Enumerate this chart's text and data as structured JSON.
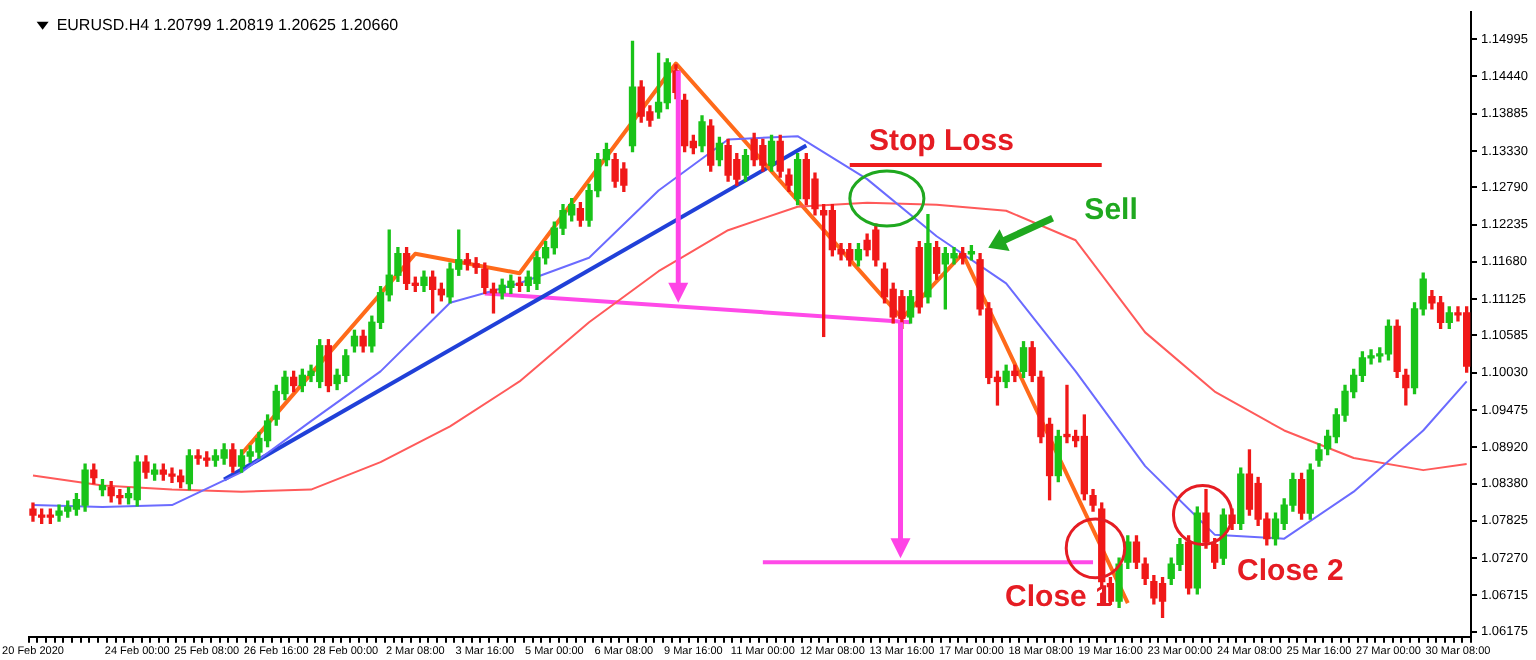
{
  "chart_data": {
    "type": "candlestick",
    "title": "EURUSD.H4 1.20799 1.20819 1.20625 1.20660",
    "categories": [
      "20 Feb 2020",
      null,
      null,
      null,
      null,
      null,
      null,
      null,
      null,
      null,
      null,
      null,
      "24 Feb 00:00",
      null,
      null,
      null,
      null,
      null,
      null,
      null,
      "25 Feb 08:00",
      null,
      null,
      null,
      null,
      null,
      null,
      null,
      "26 Feb 16:00",
      null,
      null,
      null,
      null,
      null,
      null,
      null,
      "28 Feb 00:00",
      null,
      null,
      null,
      null,
      null,
      null,
      null,
      "2 Mar 08:00",
      null,
      null,
      null,
      null,
      null,
      null,
      null,
      "3 Mar 16:00",
      null,
      null,
      null,
      null,
      null,
      null,
      null,
      "5 Mar 00:00",
      null,
      null,
      null,
      null,
      null,
      null,
      null,
      "6 Mar 08:00",
      null,
      null,
      null,
      null,
      null,
      null,
      null,
      "9 Mar 16:00",
      null,
      null,
      null,
      null,
      null,
      null,
      null,
      "11 Mar 00:00",
      null,
      null,
      null,
      null,
      null,
      null,
      null,
      "12 Mar 08:00",
      null,
      null,
      null,
      null,
      null,
      null,
      null,
      "13 Mar 16:00",
      null,
      null,
      null,
      null,
      null,
      null,
      null,
      "17 Mar 00:00",
      null,
      null,
      null,
      null,
      null,
      null,
      null,
      "18 Mar 08:00",
      null,
      null,
      null,
      null,
      null,
      null,
      null,
      "19 Mar 16:00",
      null,
      null,
      null,
      null,
      null,
      null,
      null,
      "23 Mar 00:00",
      null,
      null,
      null,
      null,
      null,
      null,
      null,
      "24 Mar 08:00",
      null,
      null,
      null,
      null,
      null,
      null,
      null,
      "25 Mar 16:00",
      null,
      null,
      null,
      null,
      null,
      null,
      null,
      "27 Mar 00:00",
      null,
      null,
      null,
      null,
      null,
      null,
      null,
      "30 Mar 08:00",
      null
    ],
    "ohlc": [
      [
        1.08,
        1.0809,
        1.0782,
        1.0791
      ],
      [
        1.0791,
        1.08,
        1.0779,
        1.0788
      ],
      [
        1.0791,
        1.08,
        1.0779,
        1.0788
      ],
      [
        1.0791,
        1.0806,
        1.0782,
        1.0797
      ],
      [
        1.0797,
        1.0812,
        1.0788,
        1.0803
      ],
      [
        1.08,
        1.0823,
        1.0791,
        1.0814
      ],
      [
        1.0806,
        1.0867,
        1.0797,
        1.0858
      ],
      [
        1.0858,
        1.0867,
        1.0838,
        1.0847
      ],
      [
        1.0829,
        1.0844,
        1.082,
        1.0835
      ],
      [
        1.0832,
        1.0841,
        1.0811,
        1.082
      ],
      [
        1.082,
        1.0829,
        1.0808,
        1.0817
      ],
      [
        1.0817,
        1.0832,
        1.0808,
        1.0823
      ],
      [
        1.0814,
        1.0879,
        1.0805,
        1.087
      ],
      [
        1.087,
        1.0879,
        1.0846,
        1.0855
      ],
      [
        1.0852,
        1.0867,
        1.0843,
        1.0858
      ],
      [
        1.0858,
        1.0867,
        1.0843,
        1.0852
      ],
      [
        1.0852,
        1.0861,
        1.084,
        1.0849
      ],
      [
        1.0849,
        1.0858,
        1.0832,
        1.0841
      ],
      [
        1.0838,
        1.0888,
        1.0829,
        1.0879
      ],
      [
        1.0879,
        1.0888,
        1.0867,
        1.0876
      ],
      [
        1.0876,
        1.0885,
        1.0864,
        1.0873
      ],
      [
        1.0873,
        1.0888,
        1.0864,
        1.0879
      ],
      [
        1.0876,
        1.0897,
        1.0867,
        1.0888
      ],
      [
        1.0888,
        1.0897,
        1.0855,
        1.0864
      ],
      [
        1.0864,
        1.0888,
        1.0855,
        1.0879
      ],
      [
        1.0879,
        1.0894,
        1.087,
        1.0885
      ],
      [
        1.0885,
        1.0914,
        1.0876,
        1.0905
      ],
      [
        1.0902,
        1.094,
        1.0893,
        1.0931
      ],
      [
        1.0934,
        1.0984,
        1.0925,
        1.0975
      ],
      [
        1.0972,
        1.1005,
        1.0963,
        1.0996
      ],
      [
        1.0996,
        1.1005,
        1.0975,
        1.0984
      ],
      [
        1.0984,
        1.1008,
        1.0975,
        1.0999
      ],
      [
        1.0999,
        1.1014,
        1.099,
        1.1005
      ],
      [
        1.099,
        1.1052,
        1.0981,
        1.1043
      ],
      [
        1.1043,
        1.1052,
        1.0975,
        1.0984
      ],
      [
        1.0987,
        1.1008,
        1.0978,
        1.0999
      ],
      [
        1.0999,
        1.1037,
        1.099,
        1.1028
      ],
      [
        1.1043,
        1.1066,
        1.1034,
        1.1057
      ],
      [
        1.1057,
        1.1066,
        1.1034,
        1.1043
      ],
      [
        1.1043,
        1.1087,
        1.1034,
        1.1078
      ],
      [
        1.1078,
        1.1131,
        1.1069,
        1.1122
      ],
      [
        1.1119,
        1.1215,
        1.111,
        1.1148
      ],
      [
        1.1148,
        1.1189,
        1.1139,
        1.118
      ],
      [
        1.118,
        1.1189,
        1.1127,
        1.1136
      ],
      [
        1.1136,
        1.1145,
        1.1124,
        1.1133
      ],
      [
        1.1133,
        1.1154,
        1.1124,
        1.1145
      ],
      [
        1.1145,
        1.1154,
        1.1092,
        1.1127
      ],
      [
        1.1127,
        1.1136,
        1.111,
        1.1119
      ],
      [
        1.1116,
        1.1166,
        1.1107,
        1.1157
      ],
      [
        1.1157,
        1.1215,
        1.1148,
        1.1171
      ],
      [
        1.1171,
        1.118,
        1.1156,
        1.1165
      ],
      [
        1.1165,
        1.1174,
        1.1151,
        1.116
      ],
      [
        1.1157,
        1.1166,
        1.1121,
        1.113
      ],
      [
        1.1127,
        1.1136,
        1.1092,
        1.1122
      ],
      [
        1.1122,
        1.1142,
        1.1113,
        1.1133
      ],
      [
        1.113,
        1.1148,
        1.1121,
        1.1139
      ],
      [
        1.1136,
        1.1145,
        1.1124,
        1.1133
      ],
      [
        1.1133,
        1.1154,
        1.1124,
        1.1145
      ],
      [
        1.1136,
        1.1183,
        1.1127,
        1.1174
      ],
      [
        1.1174,
        1.1198,
        1.1165,
        1.1189
      ],
      [
        1.1189,
        1.1227,
        1.118,
        1.1218
      ],
      [
        1.1218,
        1.1253,
        1.1209,
        1.1244
      ],
      [
        1.1238,
        1.1262,
        1.1229,
        1.1253
      ],
      [
        1.1247,
        1.1256,
        1.1221,
        1.123
      ],
      [
        1.123,
        1.1283,
        1.1221,
        1.1274
      ],
      [
        1.1274,
        1.1329,
        1.1265,
        1.132
      ],
      [
        1.132,
        1.1344,
        1.1311,
        1.1335
      ],
      [
        1.132,
        1.1329,
        1.1279,
        1.1288
      ],
      [
        1.1306,
        1.1315,
        1.1273,
        1.1282
      ],
      [
        1.1341,
        1.1496,
        1.1332,
        1.1428
      ],
      [
        1.1428,
        1.1437,
        1.1376,
        1.1385
      ],
      [
        1.1391,
        1.14,
        1.137,
        1.1379
      ],
      [
        1.1391,
        1.1478,
        1.1382,
        1.1405
      ],
      [
        1.1405,
        1.147,
        1.1396,
        1.1464
      ],
      [
        1.1452,
        1.1461,
        1.1411,
        1.142
      ],
      [
        1.1408,
        1.1417,
        1.1332,
        1.1341
      ],
      [
        1.1347,
        1.1356,
        1.1329,
        1.1338
      ],
      [
        1.1341,
        1.1385,
        1.1332,
        1.1376
      ],
      [
        1.137,
        1.1379,
        1.1303,
        1.1312
      ],
      [
        1.132,
        1.1353,
        1.1311,
        1.1344
      ],
      [
        1.1341,
        1.135,
        1.1288,
        1.1297
      ],
      [
        1.132,
        1.1329,
        1.1282,
        1.1291
      ],
      [
        1.1297,
        1.1335,
        1.1288,
        1.1326
      ],
      [
        1.135,
        1.1359,
        1.1311,
        1.132
      ],
      [
        1.1341,
        1.135,
        1.1303,
        1.1312
      ],
      [
        1.1312,
        1.1356,
        1.1303,
        1.1347
      ],
      [
        1.1347,
        1.1356,
        1.1294,
        1.1303
      ],
      [
        1.1297,
        1.1306,
        1.1273,
        1.1282
      ],
      [
        1.1262,
        1.1329,
        1.1253,
        1.132
      ],
      [
        1.132,
        1.1329,
        1.1253,
        1.1262
      ],
      [
        1.1291,
        1.13,
        1.1238,
        1.1247
      ],
      [
        1.1244,
        1.1253,
        1.1057,
        1.1238
      ],
      [
        1.1244,
        1.1253,
        1.1177,
        1.1186
      ],
      [
        1.1186,
        1.1195,
        1.1171,
        1.118
      ],
      [
        1.1186,
        1.1195,
        1.1162,
        1.1171
      ],
      [
        1.1171,
        1.1195,
        1.1162,
        1.1186
      ],
      [
        1.12,
        1.1209,
        1.1177,
        1.1186
      ],
      [
        1.1215,
        1.1224,
        1.1162,
        1.1171
      ],
      [
        1.1157,
        1.1166,
        1.1107,
        1.1116
      ],
      [
        1.1127,
        1.1136,
        1.1077,
        1.1086
      ],
      [
        1.1116,
        1.1125,
        1.1069,
        1.1084
      ],
      [
        1.1086,
        1.1125,
        1.1077,
        1.1116
      ],
      [
        1.1189,
        1.1198,
        1.1092,
        1.1101
      ],
      [
        1.1116,
        1.1238,
        1.1107,
        1.1195
      ],
      [
        1.1189,
        1.1198,
        1.1142,
        1.1151
      ],
      [
        1.1165,
        1.1189,
        1.1098,
        1.118
      ],
      [
        1.1174,
        1.1189,
        1.1165,
        1.118
      ],
      [
        1.118,
        1.1189,
        1.1165,
        1.1174
      ],
      [
        1.118,
        1.1192,
        1.1171,
        1.1183
      ],
      [
        1.1171,
        1.118,
        1.1089,
        1.1098
      ],
      [
        1.1098,
        1.1107,
        1.0987,
        1.0996
      ],
      [
        1.0996,
        1.1005,
        1.0955,
        1.099
      ],
      [
        1.099,
        1.1014,
        1.0981,
        1.1005
      ],
      [
        1.1005,
        1.1014,
        1.099,
        1.0999
      ],
      [
        1.1005,
        1.1049,
        1.0996,
        1.104
      ],
      [
        1.104,
        1.1049,
        1.099,
        1.0999
      ],
      [
        1.0996,
        1.1005,
        1.0899,
        1.0908
      ],
      [
        1.0926,
        1.0935,
        1.0814,
        1.085
      ],
      [
        1.085,
        1.0917,
        1.0841,
        1.0908
      ],
      [
        1.0911,
        1.0984,
        1.0899,
        1.0908
      ],
      [
        1.0908,
        1.0917,
        1.0893,
        1.0902
      ],
      [
        1.0908,
        1.094,
        1.0814,
        1.0823
      ],
      [
        1.082,
        1.0829,
        1.0797,
        1.0806
      ],
      [
        1.08,
        1.0809,
        1.0654,
        1.0692
      ],
      [
        1.0689,
        1.0698,
        1.0654,
        1.0663
      ],
      [
        1.0663,
        1.0727,
        1.0654,
        1.0718
      ],
      [
        1.0721,
        1.076,
        1.0712,
        1.0751
      ],
      [
        1.0751,
        1.076,
        1.0712,
        1.0721
      ],
      [
        1.0718,
        1.0727,
        1.0688,
        1.0697
      ],
      [
        1.0692,
        1.0701,
        1.0659,
        1.0668
      ],
      [
        1.0689,
        1.0698,
        1.0639,
        1.0663
      ],
      [
        1.0697,
        1.0727,
        1.0688,
        1.0718
      ],
      [
        1.0718,
        1.0756,
        1.0709,
        1.0747
      ],
      [
        1.0751,
        1.076,
        1.0674,
        1.0683
      ],
      [
        1.0683,
        1.0803,
        1.0674,
        1.0794
      ],
      [
        1.0794,
        1.0829,
        1.0742,
        1.0751
      ],
      [
        1.0747,
        1.0756,
        1.0712,
        1.0721
      ],
      [
        1.0727,
        1.08,
        1.0718,
        1.0791
      ],
      [
        1.0791,
        1.08,
        1.077,
        1.0779
      ],
      [
        1.0779,
        1.0861,
        1.077,
        1.0852
      ],
      [
        1.0852,
        1.0888,
        1.0791,
        1.08
      ],
      [
        1.0838,
        1.0847,
        1.0776,
        1.0785
      ],
      [
        1.0785,
        1.0794,
        1.0747,
        1.0756
      ],
      [
        1.0756,
        1.0794,
        1.0747,
        1.0785
      ],
      [
        1.0779,
        1.0815,
        1.077,
        1.0806
      ],
      [
        1.0806,
        1.0853,
        1.0797,
        1.0844
      ],
      [
        1.0844,
        1.0853,
        1.0785,
        1.0794
      ],
      [
        1.0794,
        1.0867,
        1.0785,
        1.0858
      ],
      [
        1.0873,
        1.0897,
        1.0864,
        1.0888
      ],
      [
        1.089,
        1.0917,
        1.0881,
        1.0908
      ],
      [
        1.0908,
        1.0949,
        1.0899,
        1.094
      ],
      [
        1.094,
        1.0984,
        1.0931,
        1.0975
      ],
      [
        1.0975,
        1.1008,
        1.0966,
        1.0999
      ],
      [
        1.0999,
        1.1034,
        1.099,
        1.1025
      ],
      [
        1.1025,
        1.1037,
        1.1016,
        1.1028
      ],
      [
        1.1028,
        1.104,
        1.1019,
        1.1031
      ],
      [
        1.1031,
        1.1081,
        1.1022,
        1.1072
      ],
      [
        1.1072,
        1.1081,
        1.0996,
        1.1005
      ],
      [
        1.0999,
        1.1008,
        1.0955,
        1.0981
      ],
      [
        1.0981,
        1.1107,
        1.0972,
        1.1098
      ],
      [
        1.1098,
        1.1151,
        1.1089,
        1.1142
      ],
      [
        1.1116,
        1.1125,
        1.1098,
        1.1107
      ],
      [
        1.1107,
        1.1116,
        1.1069,
        1.1078
      ],
      [
        1.1078,
        1.1101,
        1.1069,
        1.1092
      ],
      [
        1.1092,
        1.1101,
        1.108,
        1.1089
      ],
      [
        1.1092,
        1.1101,
        1.1004,
        1.1013
      ]
    ],
    "series": [
      {
        "type": "line",
        "color": "#6b6bff",
        "values": [
          1.0806,
          null,
          null,
          null,
          null,
          null,
          null,
          null,
          1.0803,
          null,
          null,
          null,
          null,
          null,
          null,
          null,
          1.0806,
          null,
          null,
          null,
          null,
          null,
          null,
          null,
          1.0855,
          null,
          null,
          null,
          null,
          null,
          null,
          null,
          1.0931,
          null,
          null,
          null,
          null,
          null,
          null,
          null,
          1.1005,
          null,
          null,
          null,
          null,
          null,
          null,
          null,
          1.1107,
          null,
          null,
          null,
          null,
          null,
          null,
          null,
          1.1136,
          null,
          null,
          null,
          null,
          null,
          null,
          null,
          1.1174,
          null,
          null,
          null,
          null,
          null,
          null,
          null,
          1.1274,
          null,
          null,
          null,
          null,
          null,
          null,
          null,
          1.135,
          null,
          null,
          null,
          null,
          null,
          null,
          null,
          1.1355,
          null,
          null,
          null,
          null,
          null,
          null,
          null,
          1.1291,
          null,
          null,
          null,
          null,
          null,
          null,
          null,
          1.1206,
          null,
          null,
          null,
          null,
          null,
          null,
          null,
          1.1136,
          null,
          null,
          null,
          null,
          null,
          null,
          null,
          1.1005,
          null,
          null,
          null,
          null,
          null,
          null,
          null,
          1.0864,
          null,
          null,
          null,
          null,
          null,
          null,
          null,
          1.0762,
          null,
          null,
          null,
          null,
          null,
          null,
          null,
          1.0756,
          null,
          null,
          null,
          null,
          null,
          null,
          null,
          1.0826,
          null,
          null,
          null,
          null,
          null,
          null,
          null,
          1.0917,
          null,
          null,
          null,
          null,
          1.099
        ]
      },
      {
        "type": "line",
        "color": "#ff5a5a",
        "values": [
          1.085,
          null,
          null,
          null,
          null,
          null,
          null,
          null,
          1.0835,
          null,
          null,
          null,
          null,
          null,
          null,
          null,
          1.0829,
          null,
          null,
          null,
          null,
          null,
          null,
          null,
          1.0826,
          null,
          null,
          null,
          null,
          null,
          null,
          null,
          1.0829,
          null,
          null,
          null,
          null,
          null,
          null,
          null,
          1.087,
          null,
          null,
          null,
          null,
          null,
          null,
          null,
          1.0923,
          null,
          null,
          null,
          null,
          null,
          null,
          null,
          1.099,
          null,
          null,
          null,
          null,
          null,
          null,
          null,
          1.1078,
          null,
          null,
          null,
          null,
          null,
          null,
          null,
          1.1154,
          null,
          null,
          null,
          null,
          null,
          null,
          null,
          1.1215,
          null,
          null,
          null,
          null,
          null,
          null,
          null,
          1.125,
          null,
          null,
          null,
          null,
          null,
          null,
          null,
          1.1256,
          null,
          null,
          null,
          null,
          null,
          null,
          null,
          1.1253,
          null,
          null,
          null,
          null,
          null,
          null,
          null,
          1.1244,
          null,
          null,
          null,
          null,
          null,
          null,
          null,
          1.12,
          null,
          null,
          null,
          null,
          null,
          null,
          null,
          1.1063,
          null,
          null,
          null,
          null,
          null,
          null,
          null,
          1.0975,
          null,
          null,
          null,
          null,
          null,
          null,
          null,
          1.0917,
          null,
          null,
          null,
          null,
          null,
          null,
          null,
          1.0876,
          null,
          null,
          null,
          null,
          null,
          null,
          null,
          1.0858,
          null,
          null,
          null,
          null,
          1.0867
        ]
      },
      {
        "type": "line",
        "color": "#ff6a1a",
        "values": [
          null,
          null,
          null,
          null,
          null,
          null,
          null,
          null,
          null,
          null,
          null,
          null,
          null,
          null,
          null,
          null,
          null,
          null,
          null,
          null,
          null,
          null,
          null,
          null,
          1.0882,
          null,
          null,
          null,
          null,
          null,
          null,
          null,
          null,
          null,
          null,
          null,
          null,
          null,
          null,
          null,
          null,
          null,
          null,
          null,
          1.118,
          null,
          null,
          null,
          null,
          null,
          null,
          null,
          null,
          null,
          null,
          null,
          1.1151,
          null,
          null,
          null,
          null,
          null,
          null,
          null,
          null,
          null,
          null,
          null,
          null,
          null,
          null,
          null,
          null,
          null,
          1.1463,
          null,
          null,
          null,
          null,
          null,
          null,
          null,
          null,
          null,
          null,
          null,
          null,
          null,
          null,
          null,
          null,
          null,
          null,
          null,
          null,
          null,
          null,
          null,
          null,
          null,
          1.1084,
          null,
          null,
          null,
          null,
          null,
          null,
          1.118,
          null,
          null,
          null,
          null,
          null,
          null,
          null,
          null,
          null,
          null,
          null,
          null,
          null,
          null,
          null,
          null,
          null,
          null,
          1.066,
          null,
          null,
          null,
          null,
          null,
          null,
          null,
          null,
          null,
          null,
          null,
          null,
          null,
          null,
          null,
          null,
          null,
          null,
          null,
          null,
          null,
          null,
          null,
          null,
          null,
          null,
          null,
          null,
          null,
          null,
          null,
          null,
          null,
          null,
          null,
          null,
          null,
          null,
          null
        ]
      },
      {
        "type": "line",
        "color": "#2040d8",
        "values": [
          null,
          null,
          null,
          null,
          null,
          null,
          null,
          null,
          null,
          null,
          null,
          null,
          null,
          null,
          null,
          null,
          null,
          null,
          null,
          null,
          null,
          null,
          1.0844,
          null,
          null,
          null,
          null,
          null,
          null,
          null,
          null,
          null,
          null,
          null,
          null,
          null,
          null,
          null,
          null,
          null,
          null,
          null,
          null,
          null,
          null,
          null,
          null,
          null,
          null,
          null,
          null,
          null,
          null,
          null,
          null,
          null,
          null,
          null,
          null,
          null,
          null,
          null,
          null,
          null,
          null,
          null,
          null,
          null,
          null,
          null,
          null,
          null,
          null,
          null,
          null,
          null,
          null,
          null,
          null,
          null,
          null,
          null,
          null,
          null,
          null,
          null,
          null,
          null,
          null,
          1.1341,
          null,
          null,
          null,
          null,
          null,
          null,
          null,
          null,
          null,
          null,
          null,
          null,
          null,
          null,
          null,
          null,
          null,
          null,
          null,
          null,
          null,
          null,
          null,
          null,
          null,
          null,
          null,
          null,
          null,
          null,
          null,
          null,
          null,
          null,
          null,
          null,
          null,
          null,
          null,
          null,
          null,
          null,
          null,
          null,
          null,
          null,
          null,
          null,
          null,
          null,
          null,
          null,
          null,
          null,
          null,
          null,
          null,
          null,
          null,
          null,
          null,
          null,
          null,
          null,
          null,
          null,
          null,
          null,
          null,
          null,
          null,
          null,
          null,
          null,
          null,
          null
        ]
      },
      {
        "type": "line",
        "color": "#ff4ae8",
        "values": [
          null,
          null,
          null,
          null,
          null,
          null,
          null,
          null,
          null,
          null,
          null,
          null,
          null,
          null,
          null,
          null,
          null,
          null,
          null,
          null,
          null,
          null,
          null,
          null,
          null,
          null,
          null,
          null,
          null,
          null,
          null,
          null,
          null,
          null,
          null,
          null,
          null,
          null,
          null,
          null,
          null,
          null,
          null,
          null,
          null,
          null,
          null,
          null,
          null,
          null,
          null,
          null,
          1.1121,
          null,
          null,
          null,
          null,
          null,
          null,
          null,
          null,
          null,
          null,
          null,
          null,
          null,
          null,
          null,
          null,
          null,
          null,
          null,
          null,
          null,
          null,
          null,
          null,
          null,
          null,
          null,
          null,
          null,
          null,
          null,
          null,
          null,
          null,
          null,
          null,
          null,
          null,
          null,
          null,
          null,
          null,
          null,
          null,
          null,
          null,
          null,
          null,
          1.1078,
          null,
          null,
          null,
          null,
          null,
          null,
          null,
          null,
          null,
          null,
          null,
          null,
          null,
          null,
          null,
          null,
          null,
          null,
          null,
          null,
          null,
          null,
          null,
          null,
          null,
          null,
          null,
          null,
          null,
          null,
          null,
          null,
          null,
          null,
          null,
          null,
          null,
          null,
          null,
          null,
          null,
          null,
          null,
          null,
          null,
          null,
          null,
          null,
          null,
          null,
          null,
          null,
          null,
          null,
          null,
          null,
          null,
          null,
          null,
          null,
          null,
          null,
          null,
          null
        ]
      },
      {
        "type": "line",
        "color": "#ff4ae8",
        "values": [
          null,
          null,
          null,
          null,
          null,
          null,
          null,
          null,
          null,
          null,
          null,
          null,
          null,
          null,
          null,
          null,
          null,
          null,
          null,
          null,
          null,
          null,
          null,
          null,
          null,
          null,
          null,
          null,
          null,
          null,
          null,
          null,
          null,
          null,
          null,
          null,
          null,
          null,
          null,
          null,
          null,
          null,
          null,
          null,
          null,
          null,
          null,
          null,
          null,
          null,
          null,
          null,
          null,
          null,
          null,
          null,
          null,
          null,
          null,
          null,
          null,
          null,
          null,
          null,
          null,
          null,
          null,
          null,
          null,
          null,
          null,
          null,
          null,
          null,
          null,
          null,
          null,
          null,
          null,
          null,
          null,
          null,
          null,
          null,
          1.0721,
          null,
          null,
          null,
          null,
          null,
          null,
          null,
          null,
          null,
          null,
          null,
          null,
          null,
          null,
          null,
          null,
          null,
          null,
          null,
          null,
          null,
          null,
          null,
          null,
          null,
          null,
          null,
          null,
          null,
          null,
          null,
          null,
          null,
          null,
          null,
          null,
          null,
          1.0721,
          null,
          null,
          null,
          null,
          null,
          null,
          null,
          null,
          null,
          null,
          null,
          null,
          null,
          null,
          null,
          null,
          null,
          null,
          null,
          null,
          null,
          null,
          null,
          null,
          null,
          null,
          null,
          null,
          null,
          null,
          null,
          null,
          null,
          null,
          null,
          null,
          null,
          null,
          null,
          null,
          null,
          null,
          null
        ]
      },
      {
        "type": "line",
        "color": "#ee1c1c",
        "values": [
          null,
          null,
          null,
          null,
          null,
          null,
          null,
          null,
          null,
          null,
          null,
          null,
          null,
          null,
          null,
          null,
          null,
          null,
          null,
          null,
          null,
          null,
          null,
          null,
          null,
          null,
          null,
          null,
          null,
          null,
          null,
          null,
          null,
          null,
          null,
          null,
          null,
          null,
          null,
          null,
          null,
          null,
          null,
          null,
          null,
          null,
          null,
          null,
          null,
          null,
          null,
          null,
          null,
          null,
          null,
          null,
          null,
          null,
          null,
          null,
          null,
          null,
          null,
          null,
          null,
          null,
          null,
          null,
          null,
          null,
          null,
          null,
          null,
          null,
          null,
          null,
          null,
          null,
          null,
          null,
          null,
          null,
          null,
          null,
          null,
          null,
          null,
          null,
          null,
          null,
          null,
          null,
          null,
          null,
          1.1312,
          null,
          null,
          null,
          null,
          null,
          null,
          null,
          null,
          null,
          null,
          null,
          null,
          null,
          null,
          null,
          null,
          null,
          null,
          null,
          null,
          null,
          null,
          null,
          null,
          null,
          null,
          null,
          null,
          1.1312,
          null,
          null,
          null,
          null,
          null,
          null,
          null,
          null,
          null,
          null,
          null,
          null,
          null,
          null,
          null,
          null,
          null,
          null,
          null,
          null,
          null,
          null,
          null,
          null,
          null,
          null,
          null,
          null,
          null,
          null,
          null,
          null,
          null,
          null,
          null,
          null,
          null,
          null,
          null,
          null,
          null,
          null
        ]
      }
    ],
    "ylim": [
      1.061,
      1.154
    ],
    "yticks": [
      1.14995,
      {
        "value": 1.1444,
        "label": "1.14440"
      },
      1.13885,
      {
        "value": 1.1333,
        "label": "1.13330"
      },
      {
        "value": 1.1279,
        "label": "1.12790"
      },
      1.12235,
      {
        "value": 1.1168,
        "label": "1.11680"
      },
      1.11125,
      1.10585,
      {
        "value": 1.1003,
        "label": "1.10030"
      },
      1.09475,
      {
        "value": 1.0892,
        "label": "1.08920"
      },
      {
        "value": 1.0838,
        "label": "1.08380"
      },
      1.07825,
      {
        "value": 1.0727,
        "label": "1.07270"
      },
      1.06715,
      1.06175
    ],
    "marker": "none",
    "annotations": [
      "Stop Loss",
      "Sell",
      "Close 1",
      "Close 2"
    ]
  }
}
